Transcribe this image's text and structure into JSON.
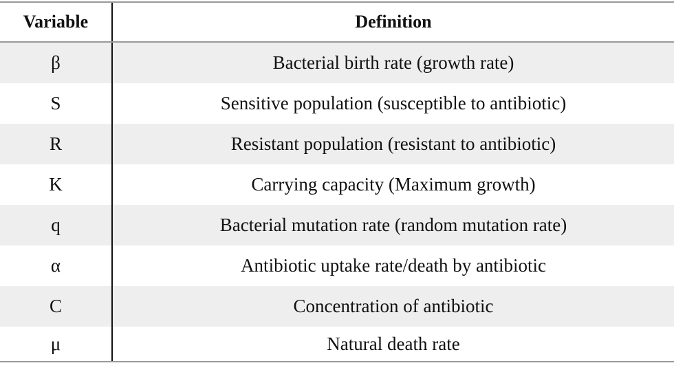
{
  "table": {
    "headers": {
      "variable": "Variable",
      "definition": "Definition"
    },
    "rows": [
      {
        "variable": "β",
        "definition": "Bacterial birth rate (growth rate)"
      },
      {
        "variable": "S",
        "definition": "Sensitive population (susceptible to antibiotic)"
      },
      {
        "variable": "R",
        "definition": "Resistant population (resistant to antibiotic)"
      },
      {
        "variable": "K",
        "definition": "Carrying capacity (Maximum growth)"
      },
      {
        "variable": "q",
        "definition": "Bacterial mutation rate (random mutation rate)"
      },
      {
        "variable": "α",
        "definition": "Antibiotic uptake rate/death by antibiotic"
      },
      {
        "variable": "C",
        "definition": "Concentration of antibiotic"
      },
      {
        "variable": "μ",
        "definition": "Natural death rate"
      }
    ]
  }
}
